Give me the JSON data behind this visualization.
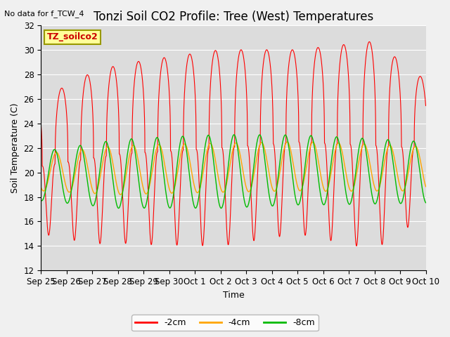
{
  "title": "Tonzi Soil CO2 Profile: Tree (West) Temperatures",
  "top_left_text": "No data for f_TCW_4",
  "ylabel": "Soil Temperature (C)",
  "xlabel": "Time",
  "ylim": [
    12,
    32
  ],
  "yticks": [
    12,
    14,
    16,
    18,
    20,
    22,
    24,
    26,
    28,
    30,
    32
  ],
  "xtick_labels": [
    "Sep 25",
    "Sep 26",
    "Sep 27",
    "Sep 28",
    "Sep 29",
    "Sep 30",
    "Oct 1",
    "Oct 2",
    "Oct 3",
    "Oct 4",
    "Oct 5",
    "Oct 6",
    "Oct 7",
    "Oct 8",
    "Oct 9",
    "Oct 10"
  ],
  "legend_entries": [
    "-2cm",
    "-4cm",
    "-8cm"
  ],
  "line_colors": [
    "#ff0000",
    "#ffa500",
    "#00bb00"
  ],
  "fig_bg_color": "#f0f0f0",
  "plot_bg_color": "#dcdcdc",
  "grid_color": "#ffffff",
  "inner_legend_text": "TZ_soilco2",
  "inner_legend_bg": "#ffff99",
  "inner_legend_border": "#999900",
  "title_fontsize": 12,
  "axis_fontsize": 9,
  "tick_fontsize": 8.5
}
